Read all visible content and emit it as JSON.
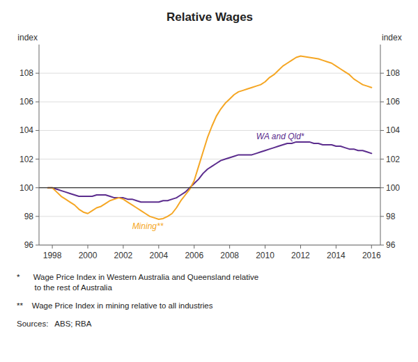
{
  "chart_data": {
    "type": "line",
    "title": "Relative Wages",
    "ylabel": "index",
    "y2label": "index",
    "xlim": [
      1997.25,
      2016.5
    ],
    "xticks": [
      1998,
      2000,
      2002,
      2004,
      2006,
      2008,
      2010,
      2012,
      2014,
      2016
    ],
    "ylim": [
      96,
      110
    ],
    "yticks": [
      96,
      98,
      100,
      102,
      104,
      106,
      108
    ],
    "y2lim": [
      96,
      110
    ],
    "y2ticks": [
      96,
      98,
      100,
      102,
      104,
      106,
      108
    ],
    "grid": true,
    "reference_line": {
      "y": 100,
      "color": "#333333"
    },
    "x": [
      1997.75,
      1998.0,
      1998.25,
      1998.5,
      1998.75,
      1999.0,
      1999.25,
      1999.5,
      1999.75,
      2000.0,
      2000.25,
      2000.5,
      2000.75,
      2001.0,
      2001.25,
      2001.5,
      2001.75,
      2002.0,
      2002.25,
      2002.5,
      2002.75,
      2003.0,
      2003.25,
      2003.5,
      2003.75,
      2004.0,
      2004.25,
      2004.5,
      2004.75,
      2005.0,
      2005.25,
      2005.5,
      2005.75,
      2006.0,
      2006.25,
      2006.5,
      2006.75,
      2007.0,
      2007.25,
      2007.5,
      2007.75,
      2008.0,
      2008.25,
      2008.5,
      2008.75,
      2009.0,
      2009.25,
      2009.5,
      2009.75,
      2010.0,
      2010.25,
      2010.5,
      2010.75,
      2011.0,
      2011.25,
      2011.5,
      2011.75,
      2012.0,
      2012.25,
      2012.5,
      2012.75,
      2013.0,
      2013.25,
      2013.5,
      2013.75,
      2014.0,
      2014.25,
      2014.5,
      2014.75,
      2015.0,
      2015.25,
      2015.5,
      2015.75,
      2016.0
    ],
    "series": [
      {
        "color": "#5b2c8d",
        "values": [
          100.0,
          100.0,
          99.9,
          99.8,
          99.7,
          99.6,
          99.5,
          99.4,
          99.4,
          99.4,
          99.4,
          99.5,
          99.5,
          99.5,
          99.4,
          99.3,
          99.3,
          99.3,
          99.2,
          99.2,
          99.1,
          99.0,
          99.0,
          99.0,
          99.0,
          99.0,
          99.1,
          99.1,
          99.2,
          99.3,
          99.5,
          99.7,
          100.0,
          100.3,
          100.6,
          101.0,
          101.3,
          101.5,
          101.7,
          101.9,
          102.0,
          102.1,
          102.2,
          102.3,
          102.3,
          102.3,
          102.3,
          102.4,
          102.5,
          102.6,
          102.7,
          102.8,
          102.9,
          103.0,
          103.1,
          103.1,
          103.2,
          103.2,
          103.2,
          103.2,
          103.1,
          103.1,
          103.0,
          103.0,
          103.0,
          102.9,
          102.9,
          102.8,
          102.7,
          102.7,
          102.6,
          102.6,
          102.5,
          102.4
        ]
      },
      {
        "color": "#f5a623",
        "values": [
          100.0,
          100.0,
          99.7,
          99.4,
          99.2,
          99.0,
          98.8,
          98.5,
          98.3,
          98.2,
          98.4,
          98.6,
          98.7,
          98.9,
          99.1,
          99.2,
          99.3,
          99.2,
          99.0,
          98.8,
          98.6,
          98.4,
          98.2,
          98.0,
          97.9,
          97.8,
          97.85,
          98.0,
          98.2,
          98.6,
          99.1,
          99.5,
          99.9,
          100.5,
          101.5,
          102.5,
          103.5,
          104.3,
          105.0,
          105.5,
          105.9,
          106.2,
          106.5,
          106.7,
          106.8,
          106.9,
          107.0,
          107.1,
          107.2,
          107.4,
          107.7,
          107.9,
          108.2,
          108.5,
          108.7,
          108.9,
          109.1,
          109.2,
          109.15,
          109.1,
          109.05,
          109.0,
          108.9,
          108.8,
          108.7,
          108.5,
          108.3,
          108.1,
          107.9,
          107.6,
          107.4,
          107.2,
          107.1,
          107.0
        ]
      }
    ],
    "annotations": [
      {
        "text": "WA and Qld*",
        "x": 2009.5,
        "y": 103.4,
        "color": "#5b2c8d"
      },
      {
        "text": "Mining**",
        "x": 2002.5,
        "y": 97.1,
        "color": "#f5a623"
      }
    ],
    "notes": [
      "*      Wage Price Index in Western Australia and Queensland relative\n        to the rest of Australia",
      "**    Wage Price Index in mining relative to all industries",
      "Sources:   ABS; RBA"
    ]
  }
}
